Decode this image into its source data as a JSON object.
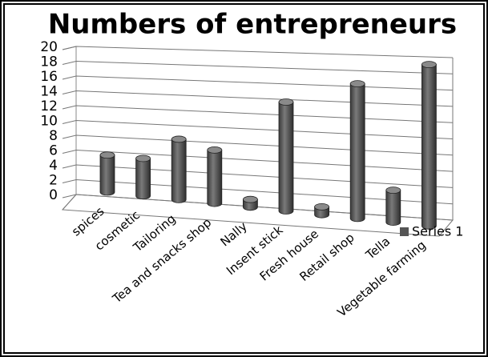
{
  "chart_data": {
    "type": "bar3d",
    "title": "Numbers of entrepreneurs",
    "categories": [
      "spices",
      "cosmetic",
      "Tailoring",
      "Tea and snacks shop",
      "Nally",
      "Insent stick",
      "Fresh house",
      "Retail shop",
      "Tella",
      "Vegetable farming"
    ],
    "series": [
      {
        "name": "Series 1",
        "color": "#555555",
        "values": [
          5,
          5,
          8,
          7,
          1,
          14,
          1,
          17,
          4,
          20
        ]
      }
    ],
    "ylim": [
      0,
      20
    ],
    "yticks": [
      0,
      2,
      4,
      6,
      8,
      10,
      12,
      14,
      16,
      18,
      20
    ],
    "grid": true,
    "legend": "right"
  }
}
